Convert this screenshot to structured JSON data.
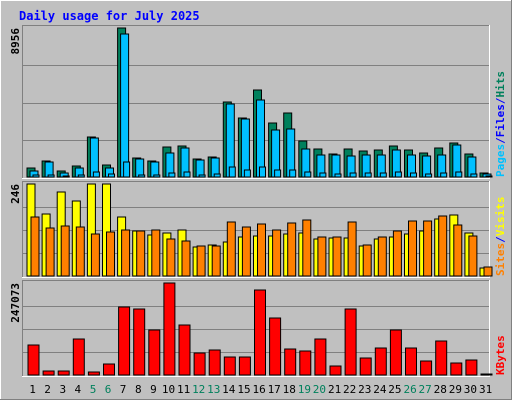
{
  "title": "Daily usage for July 2025",
  "colors": {
    "background": "#c0c0c0",
    "title": "#0000ff",
    "hits": "#00805c",
    "files": "#00c0ff",
    "pages": "#00c0ff",
    "visits": "#ffff00",
    "sites": "#ff8000",
    "kbytes": "#ff0000",
    "weekend_day": "#00805c",
    "weekday_day": "#000000",
    "separator": "#0000ff"
  },
  "chart_data": [
    {
      "type": "bar",
      "name": "hits-files-pages",
      "right_labels": [
        {
          "text": "Pages",
          "color": "#00c0ff"
        },
        {
          "text": "/",
          "color": "#0000ff"
        },
        {
          "text": "Files",
          "color": "#0000ff"
        },
        {
          "text": "/",
          "color": "#0000ff"
        },
        {
          "text": "Hits",
          "color": "#00805c"
        }
      ],
      "ymax_label": "8956",
      "ylim": [
        0,
        8956
      ],
      "categories": [
        "1",
        "2",
        "3",
        "4",
        "5",
        "6",
        "7",
        "8",
        "9",
        "10",
        "11",
        "12",
        "13",
        "14",
        "15",
        "16",
        "17",
        "18",
        "19",
        "20",
        "21",
        "22",
        "23",
        "24",
        "25",
        "26",
        "27",
        "28",
        "29",
        "30",
        "31"
      ],
      "series": [
        {
          "name": "Hits",
          "values": [
            560,
            960,
            360,
            680,
            2420,
            720,
            8960,
            1120,
            990,
            1830,
            1880,
            1070,
            1190,
            4490,
            3540,
            5240,
            3260,
            3860,
            2140,
            1700,
            1370,
            1710,
            1560,
            1640,
            1890,
            1640,
            1420,
            1730,
            2050,
            1380,
            260
          ]
        },
        {
          "name": "Files",
          "values": [
            350,
            900,
            260,
            560,
            2360,
            560,
            8580,
            1080,
            920,
            1470,
            1740,
            1030,
            1130,
            4360,
            3490,
            4610,
            2800,
            2910,
            1670,
            1330,
            1300,
            1290,
            1320,
            1320,
            1630,
            1320,
            1290,
            1340,
            1950,
            1230,
            200
          ]
        },
        {
          "name": "Pages",
          "values": [
            120,
            150,
            60,
            120,
            300,
            180,
            900,
            120,
            100,
            250,
            300,
            150,
            180,
            600,
            450,
            600,
            400,
            420,
            280,
            220,
            200,
            230,
            220,
            220,
            280,
            230,
            210,
            230,
            300,
            200,
            40
          ]
        }
      ]
    },
    {
      "type": "bar",
      "name": "visits-sites",
      "right_labels": [
        {
          "text": "Sites",
          "color": "#ff8000"
        },
        {
          "text": "/",
          "color": "#0000ff"
        },
        {
          "text": "Visits",
          "color": "#ffff00"
        }
      ],
      "ymax_label": "246",
      "ylim": [
        0,
        246
      ],
      "categories": [
        "1",
        "2",
        "3",
        "4",
        "5",
        "6",
        "7",
        "8",
        "9",
        "10",
        "11",
        "12",
        "13",
        "14",
        "15",
        "16",
        "17",
        "18",
        "19",
        "20",
        "21",
        "22",
        "23",
        "24",
        "25",
        "26",
        "27",
        "28",
        "29",
        "30",
        "31"
      ],
      "series": [
        {
          "name": "Visits",
          "values": [
            246,
            166,
            224,
            201,
            246,
            246,
            159,
            121,
            110,
            114,
            124,
            78,
            84,
            91,
            104,
            106,
            106,
            112,
            116,
            98,
            101,
            102,
            81,
            98,
            105,
            113,
            120,
            153,
            162,
            116,
            21
          ]
        },
        {
          "name": "Sites",
          "values": [
            158,
            128,
            134,
            132,
            111,
            118,
            124,
            119,
            124,
            99,
            93,
            79,
            81,
            145,
            131,
            138,
            122,
            142,
            150,
            105,
            103,
            144,
            82,
            104,
            119,
            147,
            146,
            160,
            136,
            107,
            23
          ]
        }
      ]
    },
    {
      "type": "bar",
      "name": "kbytes",
      "right_labels": [
        {
          "text": "KBytes",
          "color": "#ff0000"
        }
      ],
      "ymax_label": "247073",
      "ylim": [
        0,
        247073
      ],
      "categories": [
        "1",
        "2",
        "3",
        "4",
        "5",
        "6",
        "7",
        "8",
        "9",
        "10",
        "11",
        "12",
        "13",
        "14",
        "15",
        "16",
        "17",
        "18",
        "19",
        "20",
        "21",
        "22",
        "23",
        "24",
        "25",
        "26",
        "27",
        "28",
        "29",
        "30",
        "31"
      ],
      "series": [
        {
          "name": "KBytes",
          "values": [
            81000,
            10000,
            10000,
            96000,
            8000,
            30000,
            182000,
            176000,
            122000,
            247073,
            134000,
            58000,
            67000,
            47000,
            47000,
            229000,
            153000,
            71000,
            64000,
            98000,
            24000,
            177000,
            45000,
            73000,
            122000,
            72000,
            38000,
            90000,
            31000,
            40000,
            4000
          ]
        }
      ]
    }
  ]
}
